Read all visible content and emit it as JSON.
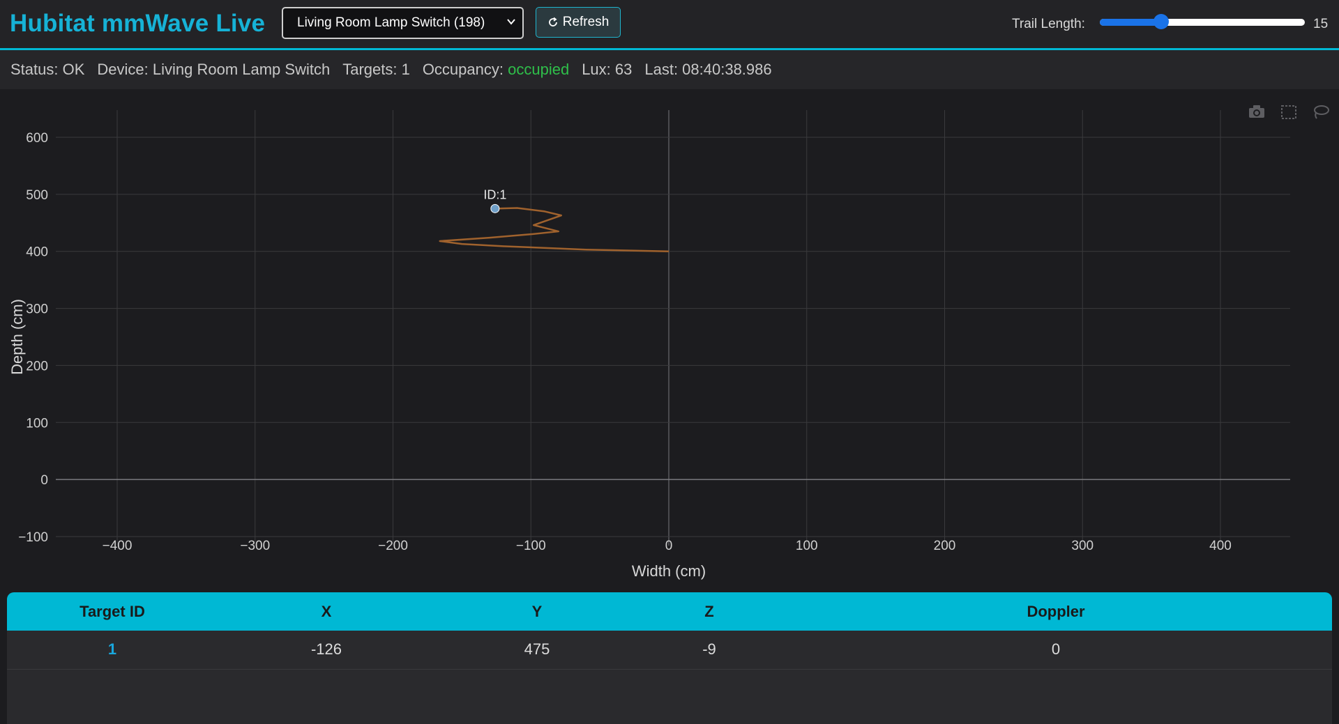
{
  "header": {
    "title": "Hubitat mmWave Live",
    "device_select_value": "Living Room Lamp Switch (198)",
    "refresh_label": "Refresh",
    "trail_length_label": "Trail Length:",
    "trail_length_value": "15",
    "trail_length_fraction": 0.3
  },
  "status": {
    "status": "Status: OK",
    "device": "Device: Living Room Lamp Switch",
    "targets": "Targets: 1",
    "occupancy_label": "Occupancy:",
    "occupancy_value": "occupied",
    "lux": "Lux: 63",
    "last": "Last: 08:40:38.986"
  },
  "chart_data": {
    "type": "scatter",
    "xlabel": "Width (cm)",
    "ylabel": "Depth (cm)",
    "xlim": [
      -450,
      450
    ],
    "ylim": [
      -100,
      650
    ],
    "x_ticks": [
      -400,
      -300,
      -200,
      -100,
      0,
      100,
      200,
      300,
      400
    ],
    "y_ticks": [
      -100,
      0,
      100,
      200,
      300,
      400,
      500,
      600
    ],
    "grid": true,
    "trail_color": "#a0622d",
    "point_color": "#6f9fc8",
    "trail": {
      "x": [
        0,
        -60,
        -120,
        -150,
        -166,
        -130,
        -100,
        -80,
        -98,
        -78,
        -90,
        -110,
        -126
      ],
      "y": [
        400,
        403,
        409,
        413,
        418,
        424,
        430,
        435,
        446,
        463,
        470,
        476,
        475
      ]
    },
    "targets": [
      {
        "label": "ID:1",
        "x": -126,
        "y": 475
      }
    ]
  },
  "toolbar_icons": [
    "camera-icon",
    "box-select-icon",
    "lasso-select-icon"
  ],
  "table": {
    "headers": [
      "Target ID",
      "X",
      "Y",
      "Z",
      "Doppler"
    ],
    "rows": [
      [
        "1",
        "-126",
        "475",
        "-9",
        "0"
      ]
    ]
  }
}
